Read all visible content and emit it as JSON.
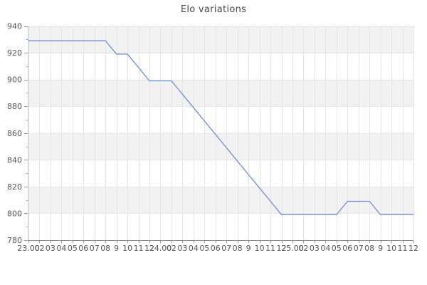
{
  "window": {
    "title": "Elo variations"
  },
  "chart_data": {
    "type": "line",
    "title": "Elo variations",
    "categories": [
      "23.00",
      "02",
      "03",
      "04",
      "05",
      "06",
      "07",
      "08",
      "9",
      "10",
      "11",
      "12",
      "24.00",
      "02",
      "03",
      "04",
      "05",
      "06",
      "07",
      "08",
      "9",
      "10",
      "11",
      "12",
      "25.00",
      "02",
      "03",
      "04",
      "05",
      "06",
      "07",
      "08",
      "9",
      "10",
      "11",
      "12"
    ],
    "series": [
      {
        "name": "Elo",
        "values": [
          929,
          929,
          929,
          929,
          929,
          929,
          929,
          929,
          919,
          919,
          909,
          899,
          899,
          899,
          889,
          879,
          869,
          859,
          849,
          839,
          829,
          819,
          809,
          799,
          799,
          799,
          799,
          799,
          799,
          809,
          809,
          809,
          799,
          799,
          799,
          799
        ]
      }
    ],
    "xlabel": "",
    "ylabel": "",
    "ylim": [
      780,
      940
    ],
    "ytick_step": 20,
    "y_minor_step": 10,
    "ytick_labels": [
      "940",
      "920",
      "900",
      "880",
      "860",
      "840",
      "820",
      "800",
      "780"
    ],
    "grid": true,
    "legend": "none",
    "alternating_bands": true,
    "band_from_top": true,
    "colors": {
      "line": "#6a90d8",
      "band": "#f2f2f2",
      "grid_vertical": "#e4e4e4",
      "grid_horizontal": "#e6e6e6",
      "axis_line": "#888888",
      "tick": "#999999",
      "label": "#555555",
      "title": "#4a4a4a",
      "background": "#ffffff"
    }
  }
}
